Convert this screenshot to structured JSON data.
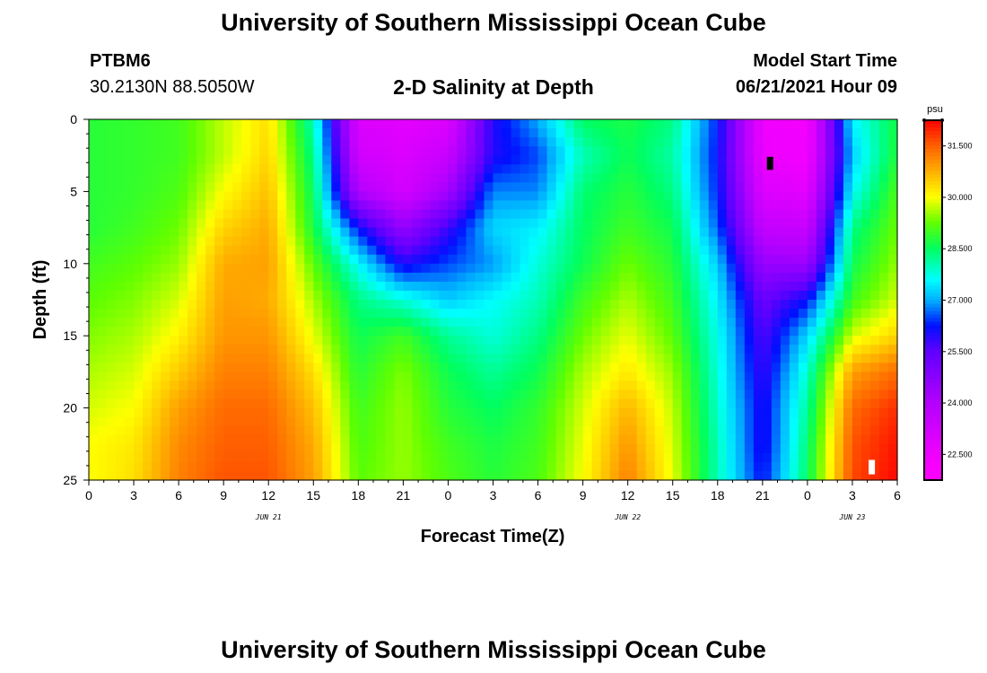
{
  "header": {
    "main_title": "University of Southern Mississippi Ocean Cube",
    "footer_title": "University of Southern Mississippi Ocean Cube",
    "station_id": "PTBM6",
    "station_coords": "30.2130N  88.5050W",
    "plot_title": "2-D Salinity at Depth",
    "start_label": "Model Start Time",
    "start_value": "06/21/2021 Hour 09"
  },
  "chart_data": {
    "type": "heatmap",
    "title": "2-D Salinity at Depth",
    "xlabel": "Forecast Time(Z)",
    "ylabel": "Depth (ft)",
    "x_range_hours": [
      0,
      54
    ],
    "x_ticks": [
      0,
      3,
      6,
      9,
      12,
      15,
      18,
      21,
      24,
      27,
      30,
      33,
      36,
      39,
      42,
      45,
      48,
      51,
      54
    ],
    "x_tick_labels": [
      "0",
      "3",
      "6",
      "9",
      "12",
      "15",
      "18",
      "21",
      "0",
      "3",
      "6",
      "9",
      "12",
      "15",
      "18",
      "21",
      "0",
      "3",
      "6"
    ],
    "date_labels": [
      {
        "hour": 12,
        "label": "JUN 21"
      },
      {
        "hour": 36,
        "label": "JUN 22"
      },
      {
        "hour": 51,
        "label": "JUN 23"
      }
    ],
    "y_range": [
      0,
      25
    ],
    "y_ticks": [
      0,
      5,
      10,
      15,
      20,
      25
    ],
    "y_tick_labels": [
      "0",
      "5",
      "10",
      "15",
      "20",
      "25"
    ],
    "colorbar": {
      "unit": "psu",
      "min": 21.75,
      "max": 32.25,
      "tick_values": [
        31.5,
        30.0,
        28.5,
        27.0,
        25.5,
        24.0,
        22.5
      ],
      "tick_labels": [
        "31.500",
        "30.000",
        "28.500",
        "27.000",
        "25.500",
        "24.000",
        "22.500"
      ],
      "color_stops": [
        {
          "v": 21.75,
          "c": "#ff00ff"
        },
        {
          "v": 22.5,
          "c": "#f000ff"
        },
        {
          "v": 24.0,
          "c": "#b400ff"
        },
        {
          "v": 25.5,
          "c": "#6000ff"
        },
        {
          "v": 26.25,
          "c": "#0010ff"
        },
        {
          "v": 27.0,
          "c": "#00b0ff"
        },
        {
          "v": 27.6,
          "c": "#00ffff"
        },
        {
          "v": 28.5,
          "c": "#00ff60"
        },
        {
          "v": 29.25,
          "c": "#60ff00"
        },
        {
          "v": 30.0,
          "c": "#ffff00"
        },
        {
          "v": 30.75,
          "c": "#ffb000"
        },
        {
          "v": 31.5,
          "c": "#ff6000"
        },
        {
          "v": 32.25,
          "c": "#ff0000"
        }
      ]
    },
    "depth_levels": [
      0,
      2.5,
      5,
      7.5,
      10,
      12.5,
      15,
      17.5,
      20,
      22.5,
      25
    ],
    "time_hours": [
      0,
      3,
      6,
      9,
      12,
      15,
      18,
      21,
      24,
      27,
      30,
      33,
      36,
      39,
      42,
      45,
      48,
      51,
      54
    ],
    "salinity": [
      [
        28.8,
        28.9,
        29.0,
        29.7,
        30.3,
        28.0,
        23.0,
        22.8,
        23.0,
        26.0,
        27.0,
        28.5,
        28.7,
        28.3,
        26.3,
        22.5,
        22.3,
        27.5,
        28.7
      ],
      [
        28.8,
        28.9,
        29.0,
        29.7,
        30.4,
        28.3,
        23.3,
        23.0,
        23.5,
        26.0,
        26.5,
        28.0,
        28.6,
        28.1,
        26.2,
        22.6,
        22.4,
        27.2,
        28.8
      ],
      [
        28.8,
        28.9,
        29.1,
        30.0,
        30.6,
        28.5,
        24.0,
        23.2,
        24.3,
        26.8,
        26.8,
        28.4,
        28.8,
        28.3,
        26.3,
        23.0,
        22.8,
        27.6,
        29.1
      ],
      [
        28.8,
        29.0,
        29.3,
        30.4,
        30.8,
        28.7,
        26.2,
        24.5,
        25.8,
        27.3,
        27.5,
        28.5,
        29.0,
        28.6,
        26.6,
        23.6,
        23.5,
        28.3,
        29.3
      ],
      [
        29.0,
        29.2,
        29.5,
        30.8,
        30.9,
        29.2,
        27.6,
        26.0,
        26.5,
        26.9,
        27.8,
        28.6,
        29.3,
        28.8,
        27.2,
        24.5,
        24.4,
        28.6,
        29.5
      ],
      [
        29.2,
        29.4,
        29.8,
        30.9,
        30.8,
        29.6,
        28.3,
        27.8,
        27.2,
        27.6,
        28.0,
        29.0,
        29.6,
        29.0,
        27.5,
        25.3,
        26.2,
        29.0,
        29.8
      ],
      [
        29.4,
        29.6,
        30.1,
        31.0,
        31.0,
        29.9,
        28.6,
        29.0,
        28.2,
        27.8,
        28.3,
        29.3,
        29.9,
        29.2,
        27.7,
        25.6,
        27.3,
        29.8,
        30.4
      ],
      [
        29.6,
        29.8,
        30.5,
        31.2,
        31.2,
        30.3,
        28.8,
        29.4,
        28.6,
        28.2,
        28.6,
        29.6,
        30.2,
        29.5,
        27.8,
        25.8,
        27.9,
        30.9,
        31.4
      ],
      [
        29.8,
        30.0,
        30.9,
        31.4,
        31.4,
        30.6,
        29.0,
        29.5,
        28.8,
        28.5,
        28.9,
        29.8,
        30.7,
        29.7,
        27.9,
        26.0,
        28.2,
        31.4,
        31.9
      ],
      [
        30.0,
        30.2,
        31.1,
        31.5,
        31.5,
        30.8,
        29.1,
        29.5,
        29.0,
        28.7,
        29.0,
        29.9,
        31.0,
        29.8,
        28.0,
        26.0,
        28.4,
        31.6,
        32.1
      ],
      [
        30.0,
        30.3,
        31.2,
        31.6,
        31.6,
        30.9,
        29.2,
        29.5,
        29.1,
        28.8,
        29.1,
        30.0,
        31.2,
        29.9,
        28.0,
        26.2,
        28.5,
        31.7,
        32.2
      ]
    ],
    "markers": [
      {
        "hour": 45.5,
        "depth_top": 2.6,
        "depth_bottom": 3.5,
        "color": "#000000"
      },
      {
        "hour": 52.3,
        "depth_top": 23.6,
        "depth_bottom": 24.6,
        "color": "#ffffff"
      }
    ]
  }
}
